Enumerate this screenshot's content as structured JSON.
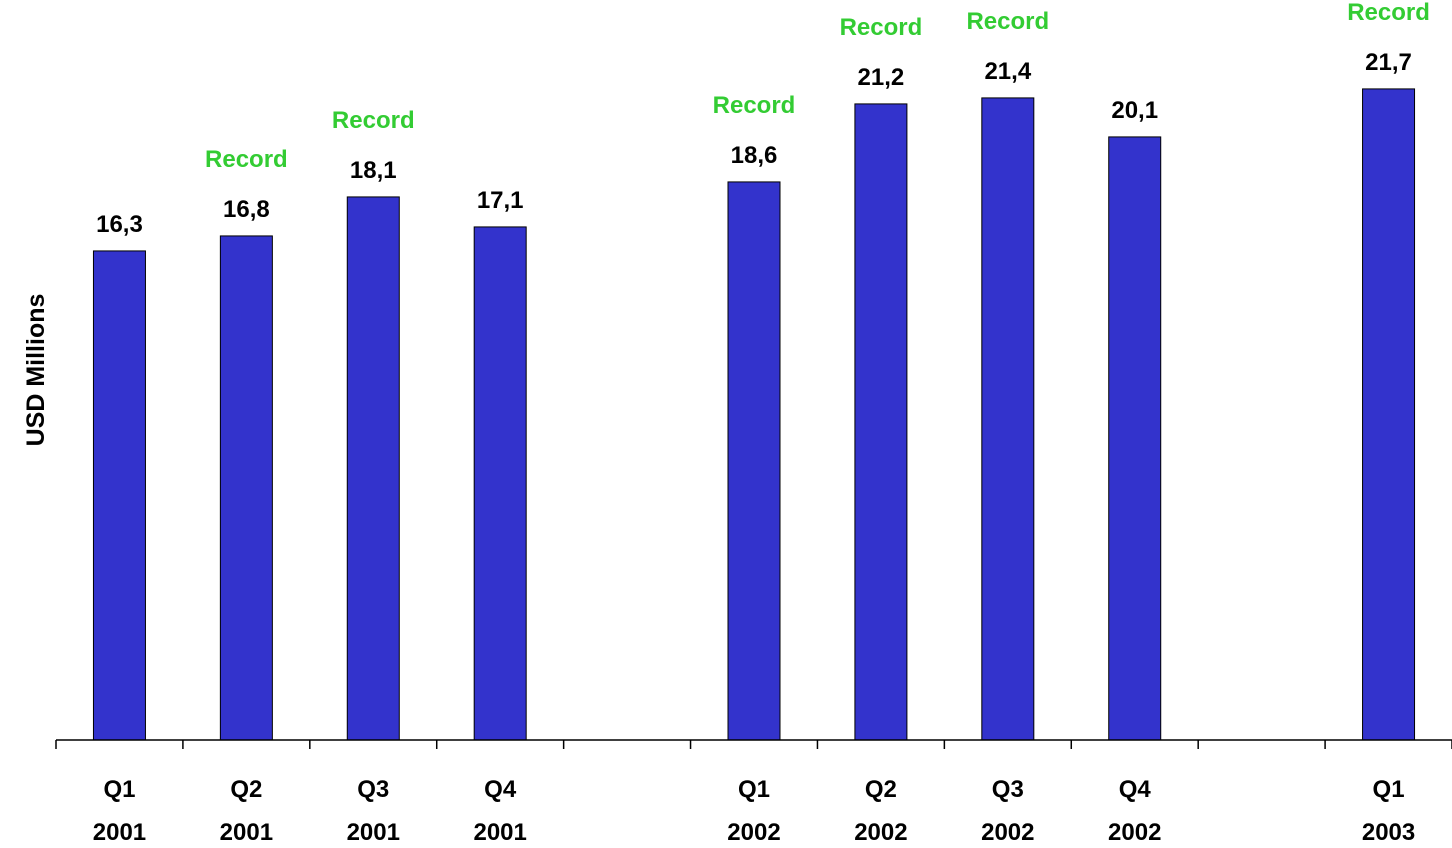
{
  "chart_data": {
    "type": "bar",
    "ylabel": "USD Millions",
    "xlabel": "",
    "ylim": [
      0,
      23.33
    ],
    "grid": false,
    "slots": 22,
    "categories": [
      {
        "quarter": "Q1",
        "year": "2001",
        "slot": 1
      },
      {
        "quarter": "Q2",
        "year": "2001",
        "slot": 3
      },
      {
        "quarter": "Q3",
        "year": "2001",
        "slot": 5
      },
      {
        "quarter": "Q4",
        "year": "2001",
        "slot": 7
      },
      {
        "quarter": "Q1",
        "year": "2002",
        "slot": 11
      },
      {
        "quarter": "Q2",
        "year": "2002",
        "slot": 13
      },
      {
        "quarter": "Q3",
        "year": "2002",
        "slot": 15
      },
      {
        "quarter": "Q4",
        "year": "2002",
        "slot": 17
      },
      {
        "quarter": "Q1",
        "year": "2003",
        "slot": 21
      }
    ],
    "values": [
      16.3,
      16.8,
      18.1,
      17.1,
      18.6,
      21.2,
      21.4,
      20.1,
      21.7
    ],
    "value_labels": [
      "16,3",
      "16,8",
      "18,1",
      "17,1",
      "18,6",
      "21,2",
      "21,4",
      "20,1",
      "21,7"
    ],
    "annotations": [
      "",
      "Record",
      "Record",
      "",
      "Record",
      "Record",
      "Record",
      "",
      "Record"
    ],
    "colors": {
      "bar": "#3333cc",
      "bar_outline": "#000000",
      "annotation": "#33cc33",
      "text": "#000000"
    }
  }
}
